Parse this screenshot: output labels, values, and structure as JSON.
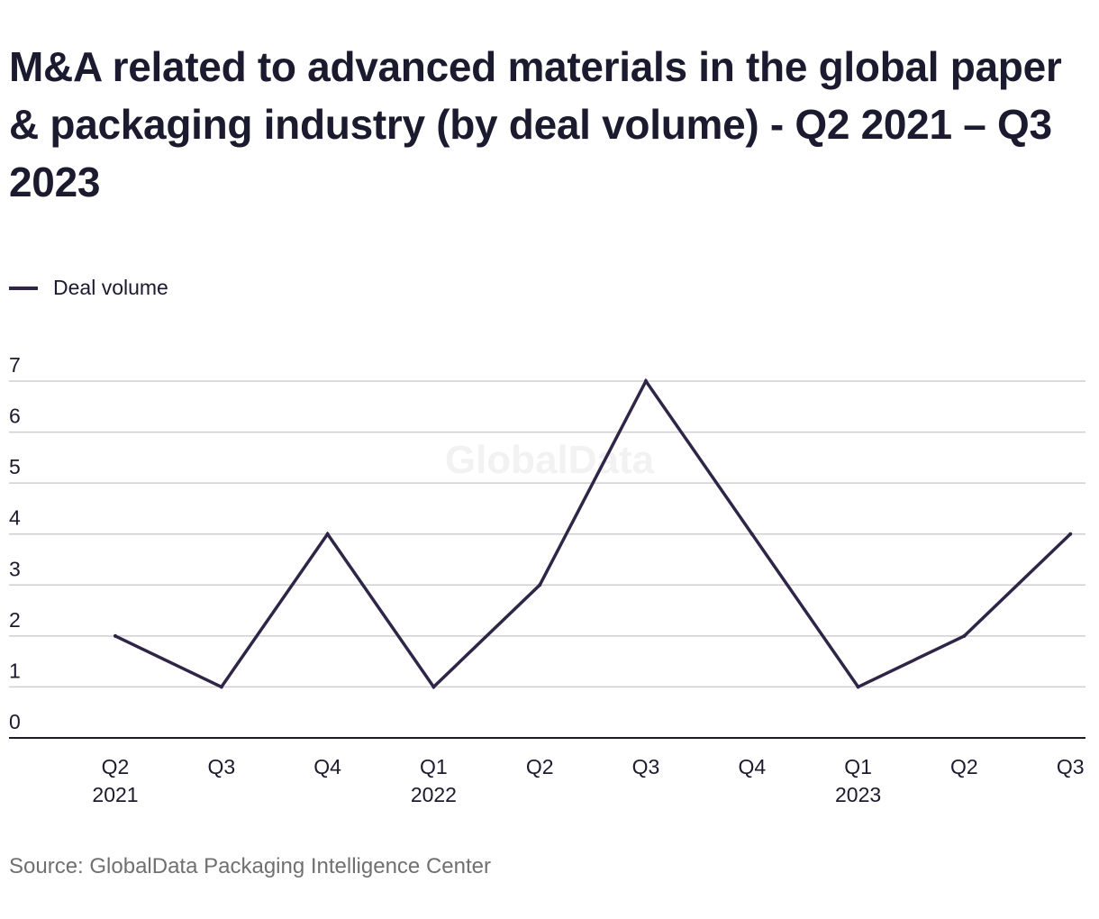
{
  "title": "M&A related to advanced materials in the global paper & packaging industry (by deal volume) - Q2 2021 – Q3 2023",
  "watermark": "GlobalData",
  "source": "Source: GlobalData Packaging Intelligence Center",
  "colors": {
    "line": "#2e2547",
    "grid": "#cfcfcf",
    "axis": "#1c1a2e",
    "text": "#1c1a2e",
    "source": "#707070",
    "watermark": "#f2f2f2"
  },
  "chart_data": {
    "type": "line",
    "title": "M&A related to advanced materials in the global paper & packaging industry (by deal volume) - Q2 2021 – Q3 2023",
    "xlabel": "",
    "ylabel": "",
    "ylim": [
      0,
      7
    ],
    "yticks": [
      0,
      1,
      2,
      3,
      4,
      5,
      6,
      7
    ],
    "grid": true,
    "legend_position": "top-left",
    "categories": [
      "Q2 2021",
      "Q3",
      "Q4",
      "Q1 2022",
      "Q2",
      "Q3",
      "Q4",
      "Q1 2023",
      "Q2",
      "Q3"
    ],
    "category_labels": [
      [
        "Q2",
        "2021"
      ],
      [
        "Q3"
      ],
      [
        "Q4"
      ],
      [
        "Q1",
        "2022"
      ],
      [
        "Q2"
      ],
      [
        "Q3"
      ],
      [
        "Q4"
      ],
      [
        "Q1",
        "2023"
      ],
      [
        "Q2"
      ],
      [
        "Q3"
      ]
    ],
    "series": [
      {
        "name": "Deal volume",
        "values": [
          2,
          1,
          4,
          1,
          3,
          7,
          4,
          1,
          2,
          4
        ]
      }
    ]
  }
}
